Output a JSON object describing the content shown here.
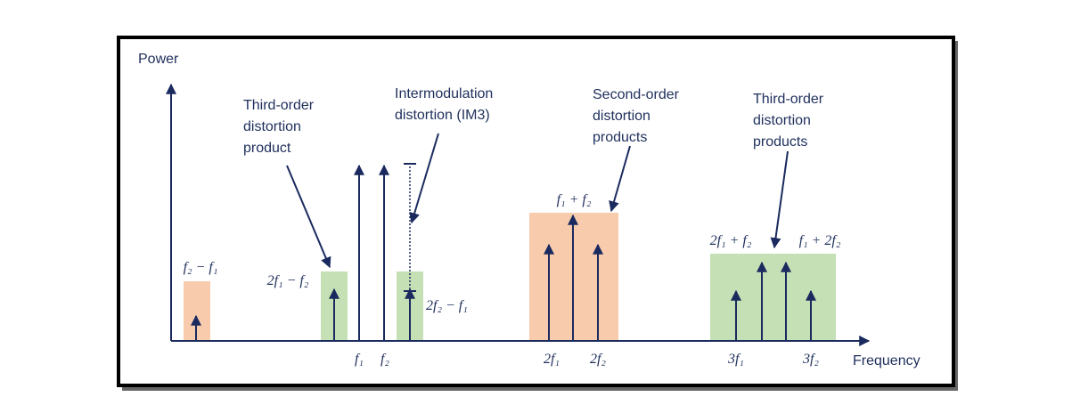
{
  "axes": {
    "y_label": "Power",
    "x_label": "Frequency"
  },
  "annotations": [
    {
      "lines": [
        "Third-order",
        "distortion",
        "product"
      ]
    },
    {
      "lines": [
        "Intermodulation",
        "distortion (IM3)"
      ]
    },
    {
      "lines": [
        "Second-order",
        "distortion",
        "products"
      ]
    },
    {
      "lines": [
        "Third-order",
        "distortion",
        "products"
      ]
    }
  ],
  "band_labels": [
    "f₂ − f₁",
    "2f₁ − f₂",
    "2f₂ − f₁",
    "f₁ + f₂",
    "2f₁ + f₂",
    "f₁ + 2f₂"
  ],
  "tick_labels": [
    "f₁",
    "f₂",
    "2f₁",
    "2f₂",
    "3f₁",
    "3f₂"
  ]
}
